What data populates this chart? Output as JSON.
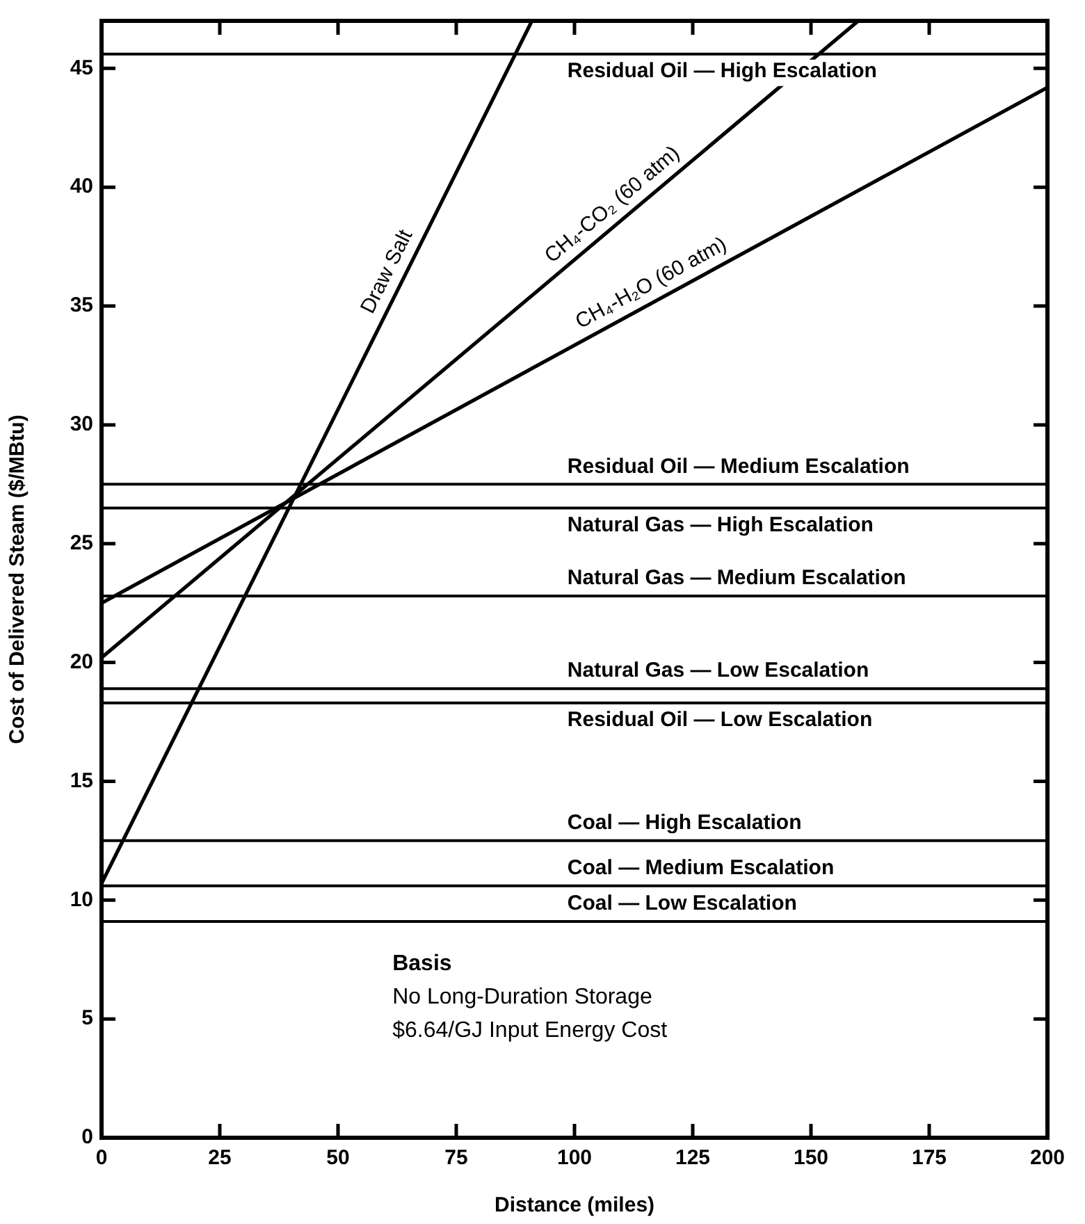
{
  "chart_data": {
    "type": "line",
    "xlabel": "Distance (miles)",
    "ylabel": "Cost of Delivered Steam ($/MBtu)",
    "xlim": [
      0,
      200
    ],
    "xticks": [
      0,
      25,
      50,
      75,
      100,
      125,
      150,
      175,
      200
    ],
    "ylim": [
      0,
      47
    ],
    "yticks": [
      0,
      5,
      10,
      15,
      20,
      25,
      30,
      35,
      40,
      45
    ],
    "grid": false,
    "legend": false,
    "marker": "none",
    "line_style": "solid",
    "series": [
      {
        "name": "Draw Salt",
        "color": "#000000",
        "x": [
          0,
          91
        ],
        "values": [
          10.7,
          47
        ]
      },
      {
        "name": "CH₄-CO₂ (60 atm)",
        "color": "#000000",
        "x": [
          0,
          160
        ],
        "values": [
          20.2,
          47
        ]
      },
      {
        "name": "CH₄-H₂O (60 atm)",
        "color": "#000000",
        "x": [
          0,
          200
        ],
        "values": [
          22.5,
          44.2
        ]
      }
    ],
    "ref_lines": [
      {
        "axis": "y",
        "value": 45.6,
        "label": "Residual Oil — High Escalation",
        "color": "#000000"
      },
      {
        "axis": "y",
        "value": 27.5,
        "label": "Residual Oil — Medium Escalation",
        "color": "#000000"
      },
      {
        "axis": "y",
        "value": 26.5,
        "label": "Natural Gas — High Escalation",
        "color": "#000000"
      },
      {
        "axis": "y",
        "value": 22.8,
        "label": "Natural Gas — Medium Escalation",
        "color": "#000000"
      },
      {
        "axis": "y",
        "value": 18.9,
        "label": "Natural Gas — Low Escalation",
        "color": "#000000"
      },
      {
        "axis": "y",
        "value": 18.3,
        "label": "Residual Oil — Low Escalation",
        "color": "#000000"
      },
      {
        "axis": "y",
        "value": 12.5,
        "label": "Coal — High Escalation",
        "color": "#000000"
      },
      {
        "axis": "y",
        "value": 10.6,
        "label": "Coal — Medium Escalation",
        "color": "#000000"
      },
      {
        "axis": "y",
        "value": 9.1,
        "label": "Coal — Low Escalation",
        "color": "#000000"
      }
    ],
    "annotations": [
      "Basis",
      "No Long-Duration Storage",
      "$6.64/GJ Input Energy Cost"
    ]
  }
}
